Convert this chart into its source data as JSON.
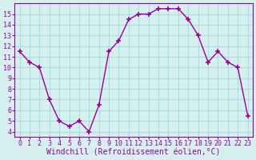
{
  "x": [
    0,
    1,
    2,
    3,
    4,
    5,
    6,
    7,
    8,
    9,
    10,
    11,
    12,
    13,
    14,
    15,
    16,
    17,
    18,
    19,
    20,
    21,
    22,
    23
  ],
  "y": [
    11.5,
    10.5,
    10.0,
    7.0,
    5.0,
    4.5,
    5.0,
    4.0,
    6.5,
    11.5,
    12.5,
    14.5,
    15.0,
    15.0,
    15.5,
    15.5,
    15.5,
    14.5,
    13.0,
    10.5,
    11.5,
    10.5,
    10.0,
    5.5
  ],
  "line_color": "#990099",
  "marker": "+",
  "bg_color": "#d6f0f0",
  "grid_color": "#aadddd",
  "xlabel": "Windchill (Refroidissement éolien,°C)",
  "xlabel_color": "#990099",
  "tick_color": "#990099",
  "ylim": [
    3.5,
    16.0
  ],
  "xlim": [
    -0.5,
    23.5
  ],
  "yticks": [
    4,
    5,
    6,
    7,
    8,
    9,
    10,
    11,
    12,
    13,
    14,
    15
  ],
  "xtick_labels": [
    "0",
    "1",
    "2",
    "3",
    "4",
    "5",
    "6",
    "7",
    "8",
    "9",
    "10",
    "11",
    "12",
    "13",
    "14",
    "15",
    "16",
    "17",
    "18",
    "19",
    "20",
    "21",
    "22",
    "23"
  ],
  "font_size": 6,
  "xlabel_font_size": 7
}
